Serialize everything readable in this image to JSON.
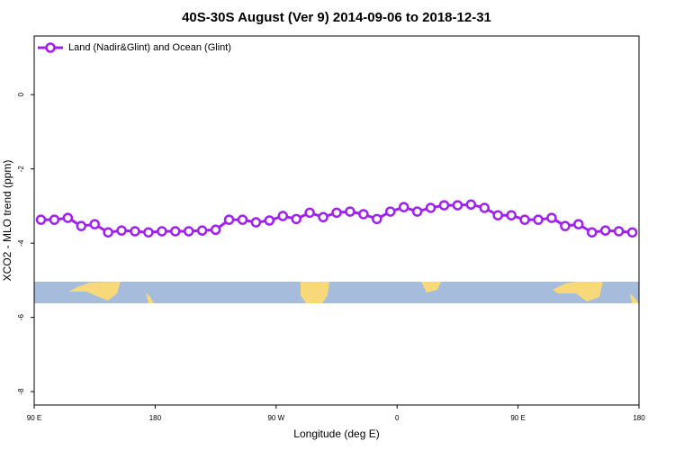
{
  "chart_data": {
    "type": "line",
    "title": "40S-30S August (Ver 9)   2014-09-06 to 2018-12-31",
    "x_label": "Longitude (deg E)",
    "y_label": "XCO2 - MLO trend (ppm)",
    "x": [
      95,
      105,
      115,
      125,
      135,
      145,
      155,
      165,
      175,
      185,
      195,
      205,
      215,
      225,
      235,
      245,
      255,
      265,
      275,
      285,
      295,
      305,
      315,
      325,
      335,
      345,
      355,
      365,
      375,
      385,
      395,
      405,
      415,
      425,
      435,
      445,
      455,
      465,
      475,
      485,
      495,
      505,
      515,
      525,
      535
    ],
    "series": [
      {
        "name": "Land (Nadir&Glint) and Ocean (Glint)",
        "color": "#a020f0",
        "values": [
          -3.37,
          -3.37,
          -3.32,
          -3.54,
          -3.49,
          -3.71,
          -3.66,
          -3.68,
          -3.71,
          -3.68,
          -3.68,
          -3.68,
          -3.66,
          -3.64,
          -3.37,
          -3.37,
          -3.44,
          -3.39,
          -3.27,
          -3.35,
          -3.18,
          -3.3,
          -3.18,
          -3.15,
          -3.22,
          -3.35,
          -3.15,
          -3.03,
          -3.15,
          -3.05,
          -2.98,
          -2.98,
          -2.96,
          -3.05,
          -3.25,
          -3.25,
          -3.37,
          -3.37,
          -3.32,
          -3.54,
          -3.49,
          -3.71,
          -3.66,
          -3.68,
          -3.71
        ]
      }
    ],
    "xlim": [
      90,
      540
    ],
    "xticks": [
      {
        "value": 90,
        "label": "90 E"
      },
      180,
      {
        "value": 270,
        "label": "90 W"
      },
      {
        "value": 360,
        "label": "0"
      },
      {
        "value": 450,
        "label": "90 E"
      },
      {
        "value": 540,
        "label": "180"
      }
    ],
    "ylim": [
      -8.36,
      1.58
    ],
    "yticks": [
      0,
      -2,
      -4,
      -6,
      -8
    ],
    "legend": "top-left"
  }
}
